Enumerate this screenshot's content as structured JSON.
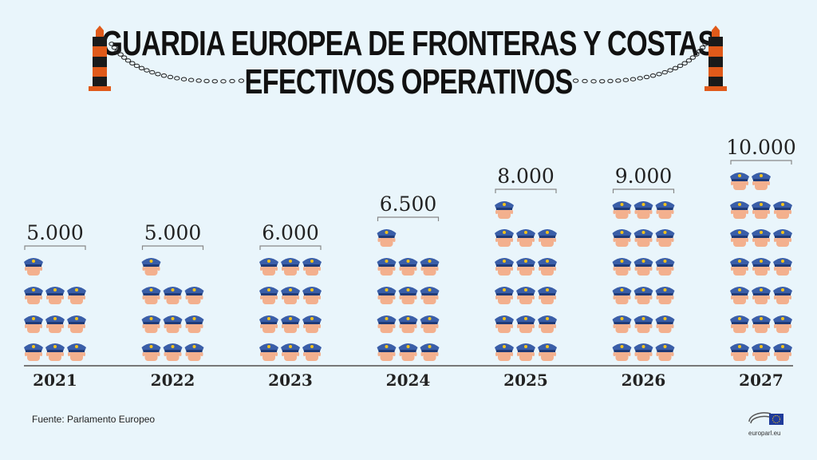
{
  "header": {
    "title_line1": "GUARDIA EUROPEA DE FRONTERAS Y COSTAS",
    "title_line2": "EFECTIVOS OPERATIVOS"
  },
  "footer": {
    "source": "Fuente: Parlamento Europeo",
    "logo_text": "europarl.eu"
  },
  "colors": {
    "background": "#e9f5fb",
    "cap": "#3a5ea8",
    "badge": "#f2c21b",
    "face": "#f3b08e",
    "post_orange": "#e05a1a",
    "post_black": "#1a1a1a"
  },
  "icons": [
    "border-post-icon",
    "chain-icon",
    "officer-icon",
    "eu-parliament-logo-icon"
  ],
  "chart_data": {
    "type": "pictogram",
    "categories": [
      "2021",
      "2022",
      "2023",
      "2024",
      "2025",
      "2026",
      "2027"
    ],
    "values": [
      5000,
      5000,
      6000,
      6500,
      8000,
      9000,
      10000
    ],
    "value_labels": [
      "5.000",
      "5.000",
      "6.000",
      "6.500",
      "8.000",
      "9.000",
      "10.000"
    ],
    "icons_per_year": [
      10,
      10,
      12,
      13,
      16,
      18,
      20
    ]
  }
}
